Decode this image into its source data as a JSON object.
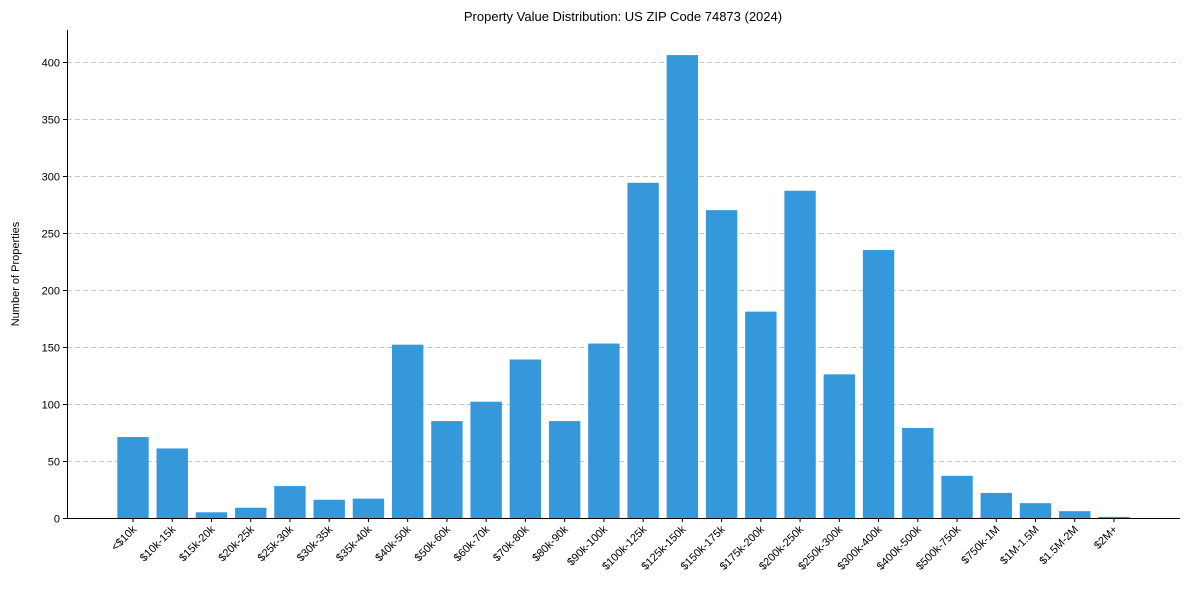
{
  "chart_data": {
    "type": "bar",
    "title": "Property Value Distribution: US ZIP Code 74873 (2024)",
    "xlabel": "",
    "ylabel": "Number of Properties",
    "ylim": [
      0,
      428
    ],
    "yticks": [
      0,
      50,
      100,
      150,
      200,
      250,
      300,
      350,
      400
    ],
    "grid": "y",
    "bar_color": "#3498db",
    "categories": [
      "<$10k",
      "$10k-15k",
      "$15k-20k",
      "$20k-25k",
      "$25k-30k",
      "$30k-35k",
      "$35k-40k",
      "$40k-50k",
      "$50k-60k",
      "$60k-70k",
      "$70k-80k",
      "$80k-90k",
      "$90k-100k",
      "$100k-125k",
      "$125k-150k",
      "$150k-175k",
      "$175k-200k",
      "$200k-250k",
      "$250k-300k",
      "$300k-400k",
      "$400k-500k",
      "$500k-750k",
      "$750k-1M",
      "$1M-1.5M",
      "$1.5M-2M",
      "$2M+"
    ],
    "values": [
      71,
      61,
      5,
      9,
      28,
      16,
      17,
      152,
      85,
      102,
      139,
      85,
      153,
      294,
      406,
      270,
      181,
      287,
      126,
      235,
      79,
      37,
      22,
      13,
      6,
      1
    ]
  }
}
